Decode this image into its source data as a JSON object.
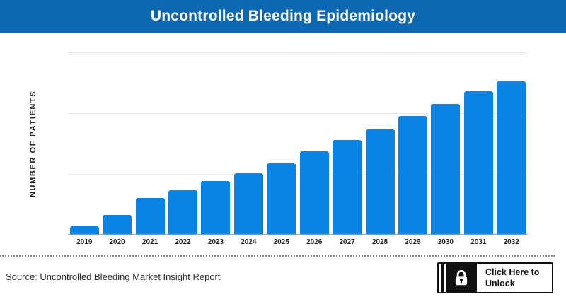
{
  "header": {
    "title": "Uncontrolled Bleeding Epidemiology"
  },
  "colors": {
    "banner_bg": "#0d68b1",
    "bar_fill": "#0a84e4",
    "gridline": "#e7e7e7",
    "axis_line": "#9a9a9a"
  },
  "chart_data": {
    "type": "bar",
    "title": "Uncontrolled Bleeding Epidemiology",
    "categories": [
      "2019",
      "2020",
      "2021",
      "2022",
      "2023",
      "2024",
      "2025",
      "2026",
      "2027",
      "2028",
      "2029",
      "2030",
      "2031",
      "2032"
    ],
    "values": [
      5.1,
      12.5,
      23.6,
      28.7,
      34.7,
      39.8,
      46.3,
      54.2,
      61.6,
      68.5,
      77.3,
      85.2,
      93.5,
      100
    ],
    "values_unit": "relative, percent of 2032 bar (no numeric y-axis ticks shown)",
    "xlabel": "",
    "ylabel": "NUMBER OF PATIENTS",
    "y_tick_labels": [],
    "ylim": [
      0,
      119
    ],
    "grid": true,
    "gridline_count": 3,
    "legend": false,
    "bar_color": "#0a84e4"
  },
  "footer": {
    "source_text": "Source: Uncontrolled Bleeding Market Insight Report",
    "unlock_button": {
      "line1": "Click Here to",
      "line2": "Unlock",
      "icon": "lock-icon"
    }
  }
}
